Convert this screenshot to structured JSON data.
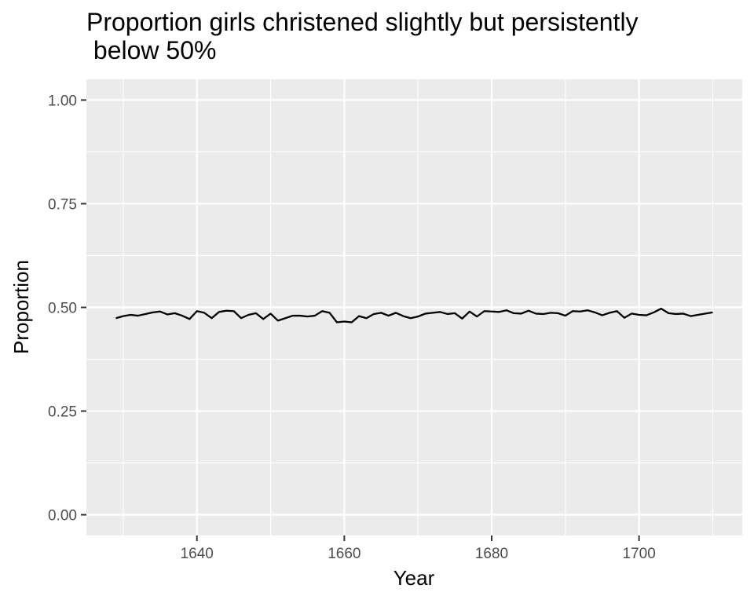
{
  "title": "Proportion girls christened slightly but persistently\n below 50%",
  "colors": {
    "panel_background": "#EBEBEB",
    "grid_major": "#FFFFFF",
    "grid_minor": "#F5F5F5",
    "line": "#000000",
    "tick_label": "#4D4D4D",
    "axis_title": "#000000"
  },
  "chart_data": {
    "type": "line",
    "title": "Proportion girls christened slightly but persistently below 50%",
    "xlabel": "Year",
    "ylabel": "Proportion",
    "xlim": [
      1625,
      1714
    ],
    "ylim": [
      -0.05,
      1.05
    ],
    "x_ticks": [
      1640,
      1660,
      1680,
      1700
    ],
    "x_tick_labels": [
      "1640",
      "1660",
      "1680",
      "1700"
    ],
    "y_ticks": [
      0,
      0.25,
      0.5,
      0.75,
      1
    ],
    "y_tick_labels": [
      "0.00",
      "0.25",
      "0.50",
      "0.75",
      "1.00"
    ],
    "grid": true,
    "legend": "none",
    "series": [
      {
        "x": [
          1629,
          1630,
          1631,
          1632,
          1633,
          1634,
          1635,
          1636,
          1637,
          1638,
          1639,
          1640,
          1641,
          1642,
          1643,
          1644,
          1645,
          1646,
          1647,
          1648,
          1649,
          1650,
          1651,
          1652,
          1653,
          1654,
          1655,
          1656,
          1657,
          1658,
          1659,
          1660,
          1661,
          1662,
          1663,
          1664,
          1665,
          1666,
          1667,
          1668,
          1669,
          1670,
          1671,
          1672,
          1673,
          1674,
          1675,
          1676,
          1677,
          1678,
          1679,
          1680,
          1681,
          1682,
          1683,
          1684,
          1685,
          1686,
          1687,
          1688,
          1689,
          1690,
          1691,
          1692,
          1693,
          1694,
          1695,
          1696,
          1697,
          1698,
          1699,
          1700,
          1701,
          1702,
          1703,
          1704,
          1705,
          1706,
          1707,
          1708,
          1709,
          1710
        ],
        "y": [
          0.474,
          0.479,
          0.482,
          0.48,
          0.484,
          0.488,
          0.49,
          0.483,
          0.486,
          0.48,
          0.472,
          0.491,
          0.487,
          0.474,
          0.489,
          0.492,
          0.491,
          0.474,
          0.482,
          0.486,
          0.472,
          0.485,
          0.468,
          0.474,
          0.48,
          0.48,
          0.478,
          0.48,
          0.491,
          0.487,
          0.464,
          0.466,
          0.464,
          0.479,
          0.474,
          0.484,
          0.487,
          0.48,
          0.487,
          0.479,
          0.474,
          0.478,
          0.485,
          0.487,
          0.489,
          0.484,
          0.486,
          0.473,
          0.49,
          0.478,
          0.491,
          0.49,
          0.489,
          0.493,
          0.486,
          0.485,
          0.492,
          0.485,
          0.484,
          0.487,
          0.486,
          0.48,
          0.491,
          0.49,
          0.493,
          0.488,
          0.481,
          0.487,
          0.491,
          0.475,
          0.485,
          0.482,
          0.481,
          0.488,
          0.497,
          0.486,
          0.484,
          0.485,
          0.479,
          0.482,
          0.485,
          0.488
        ]
      }
    ]
  }
}
